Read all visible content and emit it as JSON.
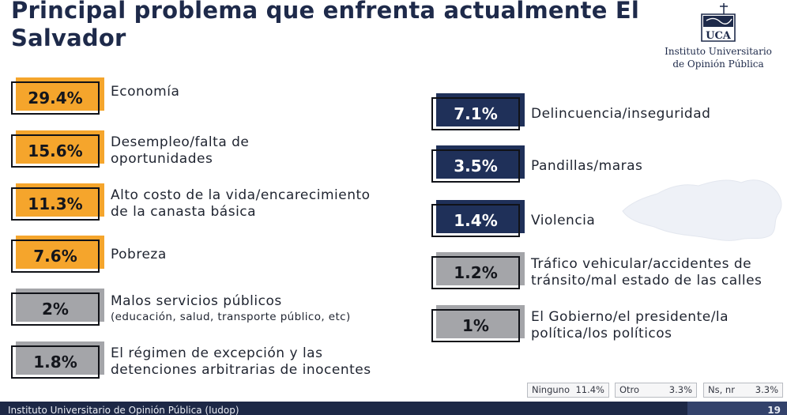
{
  "title": "Principal problema que enfrenta actualmente El Salvador",
  "logo": {
    "monogram": "UCA",
    "text_line1": "Instituto Universitario",
    "text_line2": "de Opinión Pública"
  },
  "colors": {
    "top_group": "#f5a52c",
    "minor_group": "#a4a5a9",
    "security_group": "#1f3059",
    "title": "#1e2a4a"
  },
  "chart_data": {
    "type": "table",
    "title": "Principal problema que enfrenta actualmente El Salvador",
    "unit": "%",
    "items": [
      {
        "label": "Economía",
        "sublabel": "",
        "value": 29.4,
        "value_text": "29.4%",
        "group": "orange"
      },
      {
        "label": "Desempleo/falta de\noportunidades",
        "sublabel": "",
        "value": 15.6,
        "value_text": "15.6%",
        "group": "orange"
      },
      {
        "label": "Alto costo de la vida/encarecimiento\nde la canasta básica",
        "sublabel": "",
        "value": 11.3,
        "value_text": "11.3%",
        "group": "orange"
      },
      {
        "label": "Pobreza",
        "sublabel": "",
        "value": 7.6,
        "value_text": "7.6%",
        "group": "orange"
      },
      {
        "label": "Malos servicios públicos",
        "sublabel": "(educación, salud, transporte público, etc)",
        "value": 2,
        "value_text": "2%",
        "group": "gray"
      },
      {
        "label": "El régimen de excepción y las\ndetenciones arbitrarias de inocentes",
        "sublabel": "",
        "value": 1.8,
        "value_text": "1.8%",
        "group": "gray"
      },
      {
        "label": "Delincuencia/inseguridad",
        "sublabel": "",
        "value": 7.1,
        "value_text": "7.1%",
        "group": "navy"
      },
      {
        "label": "Pandillas/maras",
        "sublabel": "",
        "value": 3.5,
        "value_text": "3.5%",
        "group": "navy"
      },
      {
        "label": "Violencia",
        "sublabel": "",
        "value": 1.4,
        "value_text": "1.4%",
        "group": "navy"
      },
      {
        "label": "Tráfico vehicular/accidentes de\ntránsito/mal estado de las calles",
        "sublabel": "",
        "value": 1.2,
        "value_text": "1.2%",
        "group": "gray"
      },
      {
        "label": "El Gobierno/el presidente/la\npolítica/los políticos",
        "sublabel": "",
        "value": 1,
        "value_text": "1%",
        "group": "gray"
      }
    ],
    "others": [
      {
        "label": "Ninguno",
        "value": 11.4,
        "value_text": "11.4%"
      },
      {
        "label": "Otro",
        "value": 3.3,
        "value_text": "3.3%"
      },
      {
        "label": "Ns, nr",
        "value": 3.3,
        "value_text": "3.3%"
      }
    ]
  },
  "footer": {
    "text": "Instituto Universitario de Opinión Pública (Iudop)",
    "page": "19"
  }
}
